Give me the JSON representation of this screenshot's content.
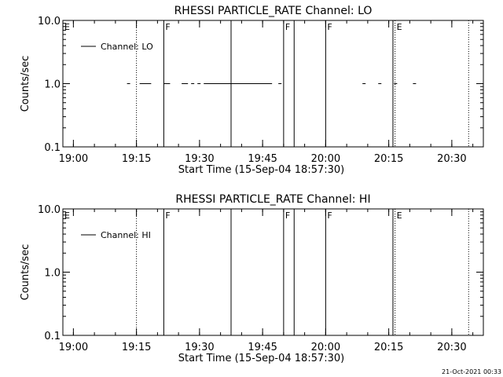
{
  "chart_data": [
    {
      "type": "line",
      "title": "RHESSI PARTICLE_RATE Channel: LO",
      "xlabel": "Start Time (15-Sep-04 18:57:30)",
      "ylabel": "Counts/sec",
      "y_scale": "log",
      "ylim": [
        0.1,
        10.0
      ],
      "xlim": [
        "18:57:30",
        "20:37:30"
      ],
      "x_ticks": [
        "19:00",
        "19:15",
        "19:30",
        "19:45",
        "20:00",
        "20:15",
        "20:30"
      ],
      "y_ticks": [
        "0.1",
        "1.0",
        "10.0"
      ],
      "legend": {
        "entries": [
          "Channel: LO"
        ],
        "position": "top-left"
      },
      "series": [
        {
          "name": "Channel: LO",
          "segments": [
            [
              "19:12:45",
              "19:13:30"
            ],
            [
              "19:15:45",
              "19:18:30"
            ],
            [
              "19:21:30",
              "19:23:00"
            ],
            [
              "19:25:45",
              "19:27:15"
            ],
            [
              "19:28:00",
              "19:28:45"
            ],
            [
              "19:29:30",
              "19:30:15"
            ],
            [
              "19:31:00",
              "19:47:15"
            ],
            [
              "19:43:45",
              "19:44:45"
            ],
            [
              "19:48:45",
              "19:49:30"
            ],
            [
              "20:08:45",
              "20:09:30"
            ],
            [
              "20:12:30",
              "20:13:15"
            ],
            [
              "20:16:15",
              "20:17:00"
            ],
            [
              "20:20:45",
              "20:21:30"
            ]
          ],
          "y": 1.0
        }
      ],
      "vlines": [
        {
          "x": "19:15:00",
          "style": "dotted",
          "label": ""
        },
        {
          "x": "19:21:30",
          "style": "solid",
          "label": "F"
        },
        {
          "x": "19:37:30",
          "style": "solid",
          "label": ""
        },
        {
          "x": "19:50:00",
          "style": "solid",
          "label": "F"
        },
        {
          "x": "19:52:30",
          "style": "solid",
          "label": ""
        },
        {
          "x": "20:00:00",
          "style": "solid",
          "label": "F"
        },
        {
          "x": "20:16:00",
          "style": "solid",
          "label": ""
        },
        {
          "x": "20:16:30",
          "style": "dotted",
          "label": "E"
        },
        {
          "x": "20:34:00",
          "style": "dotted",
          "label": ""
        }
      ],
      "corner_label": "E"
    },
    {
      "type": "line",
      "title": "RHESSI PARTICLE_RATE Channel: HI",
      "xlabel": "Start Time (15-Sep-04 18:57:30)",
      "ylabel": "Counts/sec",
      "y_scale": "log",
      "ylim": [
        0.1,
        10.0
      ],
      "xlim": [
        "18:57:30",
        "20:37:30"
      ],
      "x_ticks": [
        "19:00",
        "19:15",
        "19:30",
        "19:45",
        "20:00",
        "20:15",
        "20:30"
      ],
      "y_ticks": [
        "0.1",
        "1.0",
        "10.0"
      ],
      "legend": {
        "entries": [
          "Channel: HI"
        ],
        "position": "top-left"
      },
      "series": [
        {
          "name": "Channel: HI",
          "segments": [],
          "y": 1.0
        }
      ],
      "vlines": [
        {
          "x": "19:15:00",
          "style": "dotted",
          "label": ""
        },
        {
          "x": "19:21:30",
          "style": "solid",
          "label": "F"
        },
        {
          "x": "19:37:30",
          "style": "solid",
          "label": ""
        },
        {
          "x": "19:50:00",
          "style": "solid",
          "label": "F"
        },
        {
          "x": "19:52:30",
          "style": "solid",
          "label": ""
        },
        {
          "x": "20:00:00",
          "style": "solid",
          "label": "F"
        },
        {
          "x": "20:16:00",
          "style": "solid",
          "label": ""
        },
        {
          "x": "20:16:30",
          "style": "dotted",
          "label": "E"
        },
        {
          "x": "20:34:00",
          "style": "dotted",
          "label": ""
        }
      ],
      "corner_label": "E"
    }
  ],
  "footer": "21-Oct-2021 00:33"
}
